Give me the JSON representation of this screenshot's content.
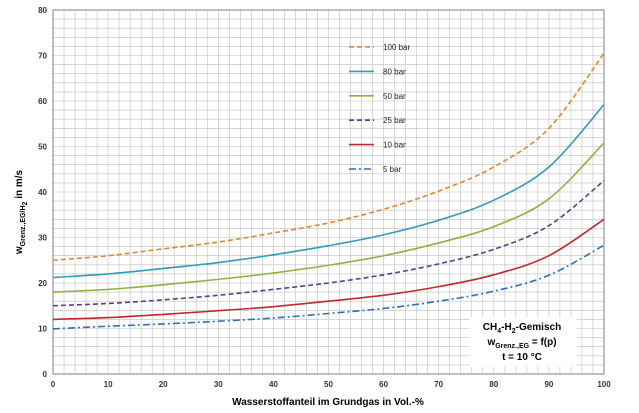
{
  "chart_data": {
    "type": "line",
    "xlabel": "Wasserstoffanteil im Grundgas in Vol.-%",
    "ylabel": {
      "base": "w",
      "subscript": "Grenz.,EG/H",
      "subscript2": "2",
      "suffix": " in m/s"
    },
    "xlim": [
      0,
      100
    ],
    "ylim": [
      0,
      80
    ],
    "xticks": [
      0,
      10,
      20,
      30,
      40,
      50,
      60,
      70,
      80,
      90,
      100
    ],
    "yticks": [
      0,
      10,
      20,
      30,
      40,
      50,
      60,
      70,
      80
    ],
    "grid": {
      "x": true,
      "y": true
    },
    "legend_position": "top-center",
    "series": [
      {
        "name": "100 bar",
        "color": "#e8842a",
        "dash": "dash",
        "x": [
          0,
          10,
          20,
          30,
          40,
          50,
          60,
          70,
          80,
          90,
          100
        ],
        "y": [
          25,
          26,
          27.5,
          29,
          31,
          33.2,
          36.2,
          40.2,
          45.5,
          54,
          70.5
        ]
      },
      {
        "name": "80 bar",
        "color": "#2f9bc0",
        "dash": "solid",
        "x": [
          0,
          10,
          20,
          30,
          40,
          50,
          60,
          70,
          80,
          90,
          100
        ],
        "y": [
          21.2,
          22,
          23.2,
          24.5,
          26.2,
          28.2,
          30.6,
          33.8,
          38.2,
          45.5,
          59.2
        ]
      },
      {
        "name": "50 bar",
        "color": "#8ab43c",
        "dash": "solid",
        "x": [
          0,
          10,
          20,
          30,
          40,
          50,
          60,
          70,
          80,
          90,
          100
        ],
        "y": [
          18,
          18.6,
          19.6,
          20.8,
          22.2,
          23.9,
          26,
          28.8,
          32.4,
          38.5,
          50.8
        ]
      },
      {
        "name": "25 bar",
        "color": "#5a3f8a",
        "dash": "dash",
        "x": [
          0,
          10,
          20,
          30,
          40,
          50,
          60,
          70,
          80,
          90,
          100
        ],
        "y": [
          15,
          15.5,
          16.3,
          17.3,
          18.6,
          20,
          21.8,
          24.2,
          27.4,
          32.6,
          42.5
        ]
      },
      {
        "name": "10 bar",
        "color": "#c0282e",
        "dash": "solid",
        "x": [
          0,
          10,
          20,
          30,
          40,
          50,
          60,
          70,
          80,
          90,
          100
        ],
        "y": [
          12,
          12.4,
          13.1,
          13.9,
          14.8,
          16,
          17.3,
          19.2,
          21.8,
          26,
          34
        ]
      },
      {
        "name": "5 bar",
        "color": "#2f6fb8",
        "dash": "dashdot",
        "x": [
          0,
          10,
          20,
          30,
          40,
          50,
          60,
          70,
          80,
          90,
          100
        ],
        "y": [
          9.9,
          10.5,
          11,
          11.6,
          12.3,
          13.3,
          14.4,
          16,
          18.2,
          21.7,
          28.3
        ]
      }
    ],
    "annotation": {
      "line1": {
        "a": "CH",
        "a_sub": "4",
        "b": "-H",
        "b_sub": "2",
        "c": "-Gemisch"
      },
      "line2": {
        "a": "w",
        "a_sub": "Grenz.,EG",
        "b": " = f(p)"
      },
      "line3": "t = 10 °C"
    },
    "colors": {
      "grid": "#bfbfbf",
      "axis": "#7f7f7f",
      "background": "#ffffff"
    }
  }
}
